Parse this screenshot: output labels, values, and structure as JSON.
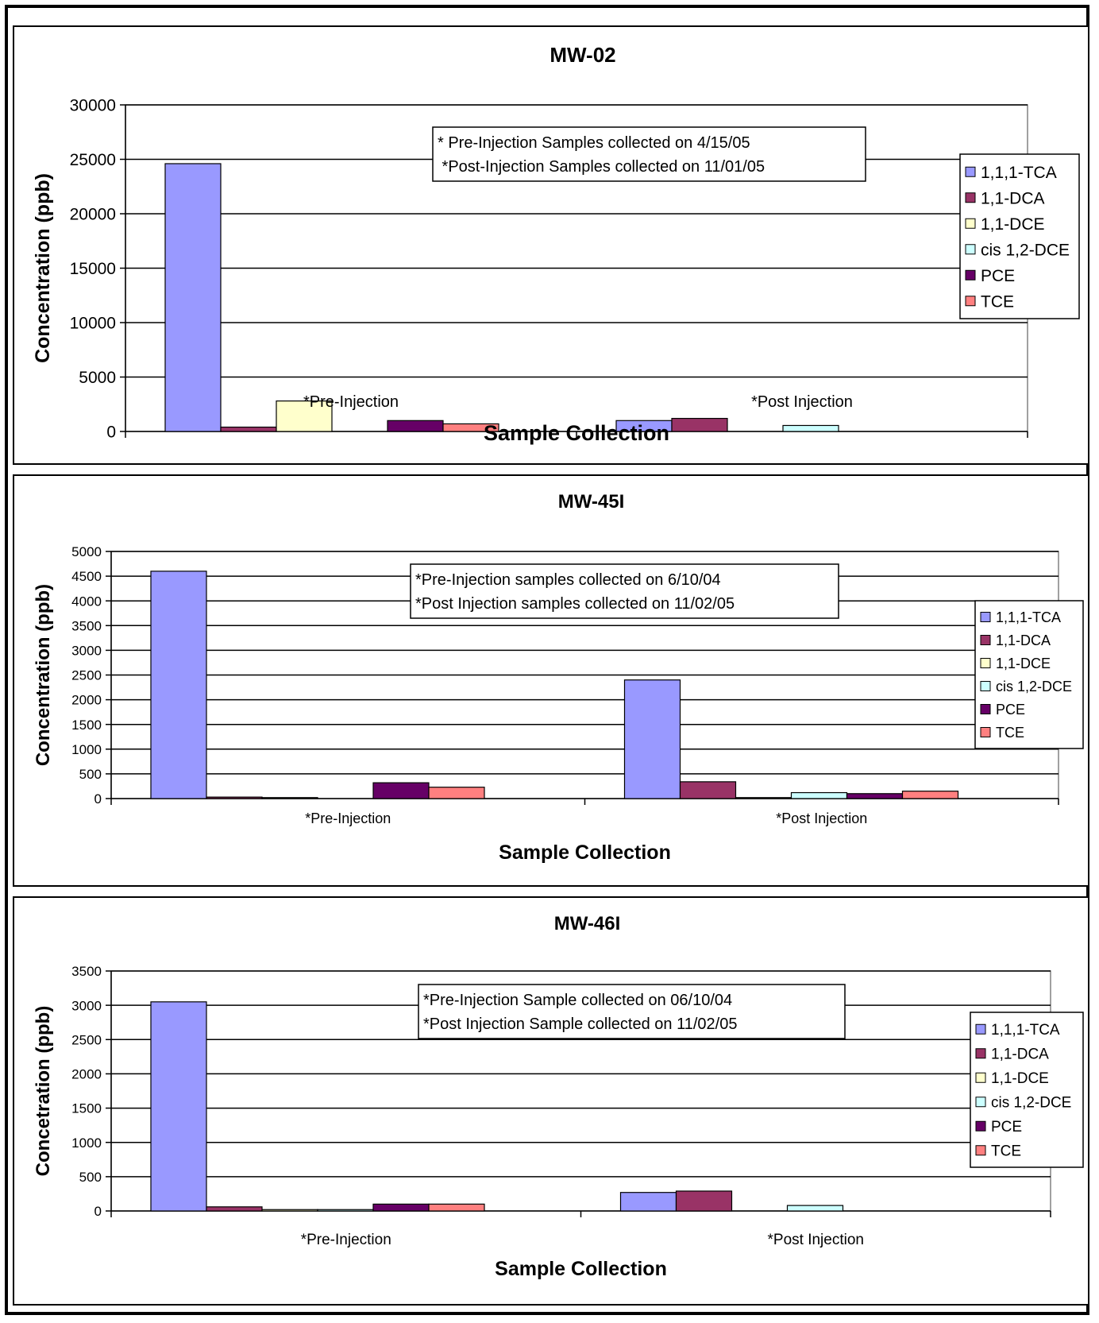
{
  "colors": {
    "1,1,1-TCA": "#9999ff",
    "1,1-DCA": "#993366",
    "1,1-DCE": "#ffffcc",
    "cis 1,2-DCE": "#ccffff",
    "PCE": "#660066",
    "TCE": "#ff8080"
  },
  "chart_data": [
    {
      "type": "bar",
      "title": "MW-02",
      "xlabel": "Sample Collection",
      "ylabel": "Concentration (ppb)",
      "categories": [
        "*Pre-Injection",
        "*Post Injection"
      ],
      "ylim": [
        0,
        30000
      ],
      "yticks": [
        "0",
        "5000",
        "10000",
        "15000",
        "20000",
        "25000",
        "30000"
      ],
      "grid": true,
      "legend": "right",
      "annotation": [
        "* Pre-Injection Samples collected on 4/15/05",
        " *Post-Injection Samples collected on 11/01/05"
      ],
      "series": [
        {
          "name": "1,1,1-TCA",
          "values": [
            24600,
            1000
          ]
        },
        {
          "name": "1,1-DCA",
          "values": [
            400,
            1200
          ]
        },
        {
          "name": "1,1-DCE",
          "values": [
            2800,
            0
          ]
        },
        {
          "name": "cis 1,2-DCE",
          "values": [
            0,
            550
          ]
        },
        {
          "name": "PCE",
          "values": [
            1000,
            0
          ]
        },
        {
          "name": "TCE",
          "values": [
            700,
            0
          ]
        }
      ]
    },
    {
      "type": "bar",
      "title": "MW-45I",
      "xlabel": "Sample Collection",
      "ylabel": "Concentration (ppb)",
      "categories": [
        "*Pre-Injection",
        "*Post Injection"
      ],
      "ylim": [
        0,
        5000
      ],
      "yticks": [
        "0",
        "500",
        "1000",
        "1500",
        "2000",
        "2500",
        "3000",
        "3500",
        "4000",
        "4500",
        "5000"
      ],
      "grid": true,
      "legend": "right",
      "annotation": [
        "*Pre-Injection samples collected on 6/10/04",
        "*Post Injection samples collected on 11/02/05"
      ],
      "series": [
        {
          "name": "1,1,1-TCA",
          "values": [
            4600,
            2400
          ]
        },
        {
          "name": "1,1-DCA",
          "values": [
            30,
            340
          ]
        },
        {
          "name": "1,1-DCE",
          "values": [
            20,
            20
          ]
        },
        {
          "name": "cis 1,2-DCE",
          "values": [
            0,
            120
          ]
        },
        {
          "name": "PCE",
          "values": [
            320,
            100
          ]
        },
        {
          "name": "TCE",
          "values": [
            230,
            150
          ]
        }
      ]
    },
    {
      "type": "bar",
      "title": "MW-46I",
      "xlabel": "Sample Collection",
      "ylabel": "Concetration (ppb)",
      "categories": [
        "*Pre-Injection",
        "*Post Injection"
      ],
      "ylim": [
        0,
        3500
      ],
      "yticks": [
        "0",
        "500",
        "1000",
        "1500",
        "2000",
        "2500",
        "3000",
        "3500"
      ],
      "grid": true,
      "legend": "right",
      "annotation": [
        "*Pre-Injection Sample collected on 06/10/04",
        "*Post Injection Sample collected on 11/02/05"
      ],
      "series": [
        {
          "name": "1,1,1-TCA",
          "values": [
            3050,
            270
          ]
        },
        {
          "name": "1,1-DCA",
          "values": [
            60,
            290
          ]
        },
        {
          "name": "1,1-DCE",
          "values": [
            20,
            0
          ]
        },
        {
          "name": "cis 1,2-DCE",
          "values": [
            20,
            80
          ]
        },
        {
          "name": "PCE",
          "values": [
            100,
            0
          ]
        },
        {
          "name": "TCE",
          "values": [
            100,
            0
          ]
        }
      ]
    }
  ]
}
